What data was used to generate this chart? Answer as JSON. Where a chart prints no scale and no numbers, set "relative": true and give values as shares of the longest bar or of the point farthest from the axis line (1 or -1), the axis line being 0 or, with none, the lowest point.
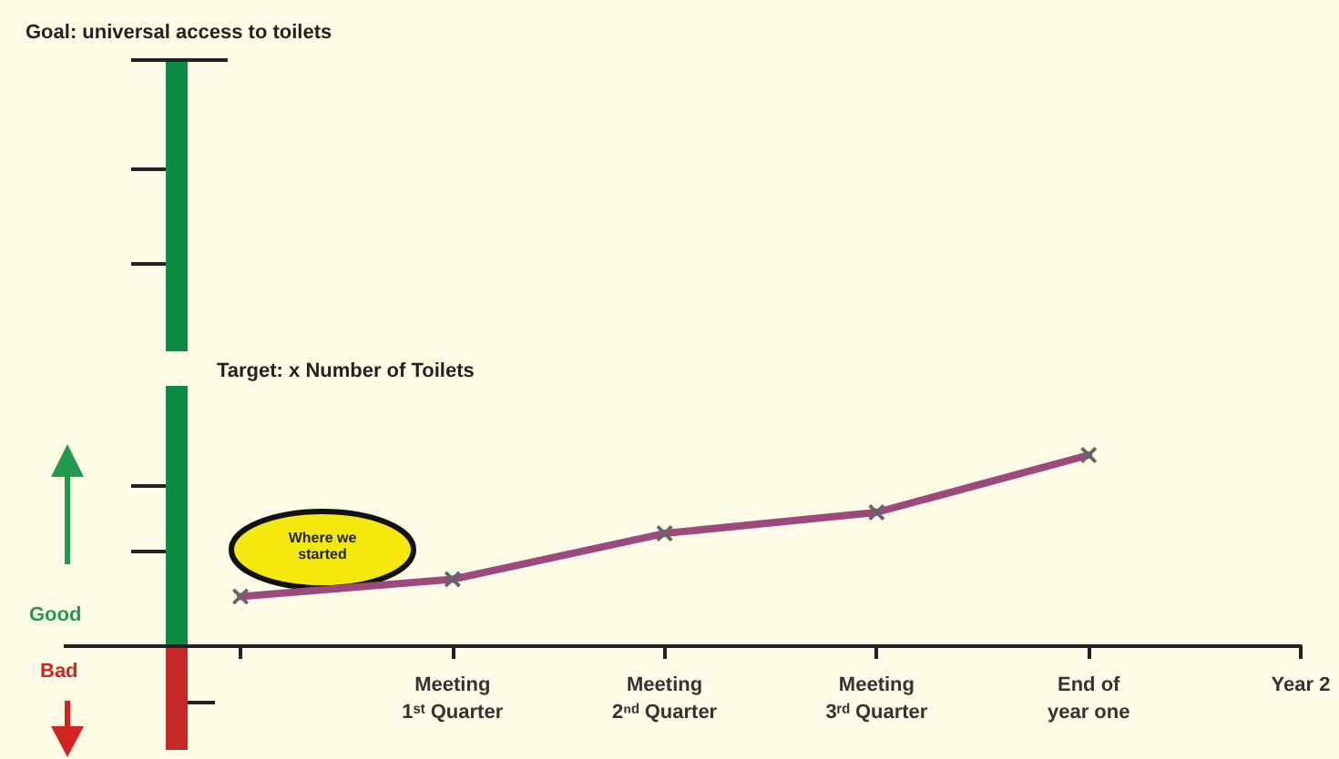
{
  "chart_data": {
    "type": "line",
    "relative": true,
    "categories": [
      null,
      "Meeting\n1ˢᵗ Quarter",
      "Meeting\n2ⁿᵈ Quarter",
      "Meeting\n3ʳᵈ Quarter",
      "End of\nyear one",
      "Year 2"
    ],
    "series": [
      {
        "color": "#9c4a7e",
        "values": [
          0.26,
          0.35,
          0.59,
          0.7,
          1.0,
          null
        ]
      }
    ],
    "marker": "cross",
    "line_style": "solid",
    "grid": false,
    "annotations": [
      "Goal: universal access to toilets",
      "Target: x Number of Toilets",
      "Good",
      "Bad",
      "Where we started"
    ]
  }
}
